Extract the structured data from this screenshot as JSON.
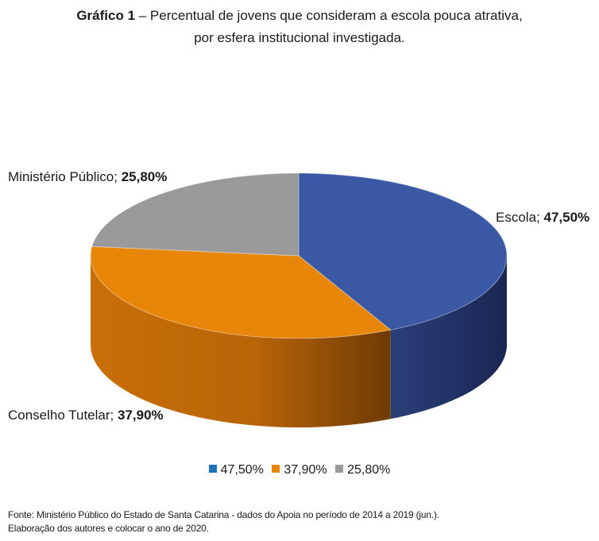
{
  "title": {
    "prefix": "Gráfico 1",
    "line1": " – Percentual de jovens que consideram a escola pouca atrativa,",
    "line2": "por esfera institucional investigada."
  },
  "chart_data": {
    "type": "pie",
    "style": "3d",
    "slices": [
      {
        "name": "Escola",
        "value": 47.5,
        "value_label": "47,50%",
        "color": "#3A58A4",
        "legend_color": "#1F6FBF"
      },
      {
        "name": "Conselho Tutelar",
        "value": 37.9,
        "value_label": "37,90%",
        "color": "#E8860A",
        "legend_color": "#E8860A"
      },
      {
        "name": "Ministério Público",
        "value": 25.8,
        "value_label": "25,80%",
        "color": "#9A9A9A",
        "legend_color": "#9A9A9A"
      }
    ],
    "legend": [
      "47,50%",
      "37,90%",
      "25,80%"
    ],
    "legend_position": "bottom"
  },
  "source": {
    "line1": "Fonte: Ministério Público do Estado de Santa Catarina - dados do Apoia no período de 2014 a 2019 (jun.).",
    "line2": "Elaboração dos autores e colocar o ano de 2020."
  }
}
